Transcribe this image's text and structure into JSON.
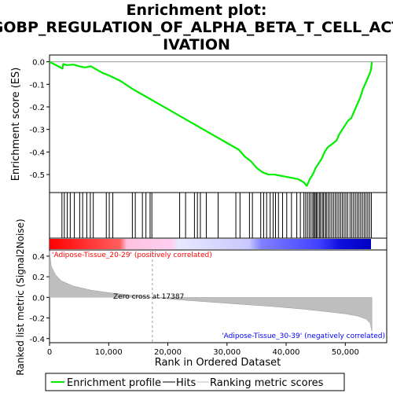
{
  "chart_data": {
    "type": "line",
    "title_lines": [
      "Enrichment plot:",
      "GOBP_REGULATION_OF_ALPHA_BETA_T_CELL_ACT",
      "IVATION"
    ],
    "top_ylabel": "Enrichment score (ES)",
    "bottom_ylabel": "Ranked list metric (Signal2Noise)",
    "xlabel": "Rank in Ordered Dataset",
    "x_ticks": [
      "0",
      "10,000",
      "20,000",
      "30,000",
      "40,000",
      "50,000"
    ],
    "x_tick_values": [
      0,
      10000,
      20000,
      30000,
      40000,
      50000
    ],
    "xlim": [
      0,
      57000
    ],
    "es_ylim": [
      -0.58,
      0.03
    ],
    "es_ticks": [
      "0.0",
      "-0.1",
      "-0.2",
      "-0.3",
      "-0.4",
      "-0.5"
    ],
    "es_tick_values": [
      0.0,
      -0.1,
      -0.2,
      -0.3,
      -0.4,
      -0.5
    ],
    "metric_ylim": [
      -0.44,
      0.46
    ],
    "metric_ticks": [
      "0.4",
      "0.2",
      "0.0",
      "-0.2",
      "-0.4"
    ],
    "metric_tick_values": [
      0.4,
      0.2,
      0.0,
      -0.2,
      -0.4
    ],
    "series": [
      {
        "name": "Enrichment profile",
        "color": "#00ee00",
        "x": [
          0,
          2200,
          2300,
          3000,
          4000,
          5000,
          6000,
          7000,
          8000,
          9000,
          10000,
          12000,
          14000,
          16000,
          18000,
          20000,
          22000,
          24000,
          26000,
          28000,
          30000,
          32000,
          33000,
          34000,
          35000,
          36000,
          37000,
          38000,
          39000,
          40000,
          41000,
          42000,
          43000,
          43500,
          44000,
          44500,
          45000,
          46000,
          46500,
          47000,
          47500,
          48000,
          48500,
          49000,
          49500,
          50000,
          50500,
          51000,
          51500,
          52000,
          52500,
          53000,
          53500,
          54000,
          54300,
          54500
        ],
        "y": [
          0.0,
          -0.03,
          -0.01,
          -0.015,
          -0.012,
          -0.02,
          -0.025,
          -0.02,
          -0.035,
          -0.05,
          -0.06,
          -0.085,
          -0.12,
          -0.15,
          -0.18,
          -0.21,
          -0.24,
          -0.27,
          -0.3,
          -0.33,
          -0.36,
          -0.39,
          -0.42,
          -0.44,
          -0.47,
          -0.49,
          -0.5,
          -0.5,
          -0.505,
          -0.51,
          -0.515,
          -0.52,
          -0.535,
          -0.55,
          -0.52,
          -0.5,
          -0.47,
          -0.43,
          -0.4,
          -0.38,
          -0.37,
          -0.36,
          -0.35,
          -0.32,
          -0.3,
          -0.28,
          -0.26,
          -0.25,
          -0.22,
          -0.19,
          -0.16,
          -0.12,
          -0.09,
          -0.06,
          -0.04,
          0.0
        ]
      }
    ],
    "hit_ranks": [
      2100,
      2500,
      3000,
      3500,
      4200,
      5100,
      5600,
      6300,
      6900,
      7400,
      9600,
      10100,
      10700,
      14000,
      14500,
      15700,
      16300,
      17000,
      17300,
      22000,
      23000,
      24500,
      25000,
      25500,
      26500,
      28500,
      31500,
      32200,
      33800,
      34300,
      35700,
      36200,
      36700,
      37300,
      37800,
      38200,
      38700,
      39400,
      40100,
      40900,
      41800,
      42400,
      43000,
      43300,
      43600,
      43900,
      44200,
      44500,
      44700,
      44900,
      45100,
      45300,
      45600,
      45800,
      46100,
      46300,
      46600,
      46800,
      47100,
      47400,
      47700,
      48000,
      48300,
      48600,
      48900,
      49200,
      49500,
      49800,
      50100,
      50400,
      50800,
      51100,
      51400,
      51700,
      52000,
      52300,
      52600,
      52900,
      53200,
      53500,
      53800,
      54100,
      54400
    ],
    "metric": {
      "x": [
        0,
        300,
        1000,
        2000,
        4000,
        7000,
        10000,
        14000,
        17387,
        21000,
        27000,
        33000,
        38000,
        43000,
        47000,
        50000,
        52000,
        53500,
        54200,
        54500
      ],
      "y": [
        0.45,
        0.3,
        0.22,
        0.16,
        0.11,
        0.07,
        0.045,
        0.02,
        0.0,
        -0.02,
        -0.045,
        -0.07,
        -0.09,
        -0.115,
        -0.14,
        -0.16,
        -0.18,
        -0.21,
        -0.25,
        -0.33
      ]
    },
    "zero_cross_label": "Zero cross at 17387",
    "zero_cross_rank": 17387,
    "pos_label": "'Adipose-Tissue_20-29' (positively correlated)",
    "neg_label": "'Adipose-Tissue_30-39' (negatively correlated)",
    "pos_color": "#ff0000",
    "neg_color": "#0000ff",
    "legend": [
      {
        "label": "Enrichment profile",
        "color": "#00ee00"
      },
      {
        "label": "Hits",
        "color": "#000000"
      },
      {
        "label": "Ranking metric scores",
        "color": "#bebebe"
      }
    ]
  }
}
